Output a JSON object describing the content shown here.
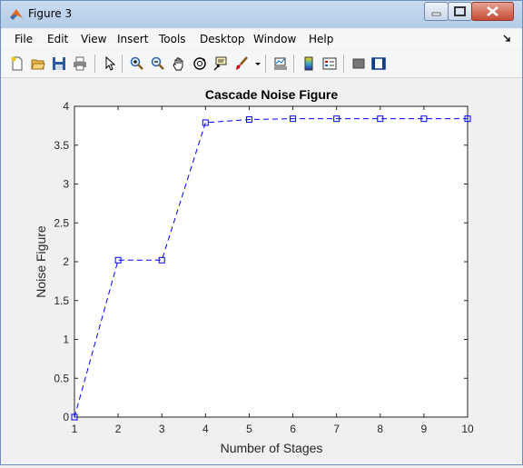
{
  "window": {
    "title": "Figure 3"
  },
  "menu": [
    "File",
    "Edit",
    "View",
    "Insert",
    "Tools",
    "Desktop",
    "Window",
    "Help"
  ],
  "toolbar": {
    "icons": [
      "new-figure-icon",
      "open-file-icon",
      "save-icon",
      "print-icon",
      "edit-plot-arrow-icon",
      "zoom-in-icon",
      "zoom-out-icon",
      "pan-hand-icon",
      "rotate-3d-icon",
      "data-cursor-icon",
      "brush-icon",
      "brush-dropdown-icon",
      "link-plot-icon",
      "insert-colorbar-icon",
      "insert-legend-icon",
      "hide-plot-tools-icon",
      "show-plot-tools-icon"
    ]
  },
  "chart_data": {
    "type": "line",
    "title": "Cascade Noise Figure",
    "xlabel": "Number of Stages",
    "ylabel": "Noise Figure",
    "x": [
      1,
      2,
      3,
      4,
      5,
      6,
      7,
      8,
      9,
      10
    ],
    "xlim": [
      1,
      10
    ],
    "ylim": [
      0,
      4
    ],
    "xticks": [
      1,
      2,
      3,
      4,
      5,
      6,
      7,
      8,
      9,
      10
    ],
    "yticks": [
      0,
      0.5,
      1,
      1.5,
      2,
      2.5,
      3,
      3.5,
      4
    ],
    "series": [
      {
        "values": [
          0,
          2.02,
          2.02,
          3.79,
          3.83,
          3.84,
          3.84,
          3.84,
          3.84,
          3.84
        ],
        "color": "#0000ff",
        "line_style": "dashed",
        "marker": "square"
      }
    ],
    "grid": false
  }
}
